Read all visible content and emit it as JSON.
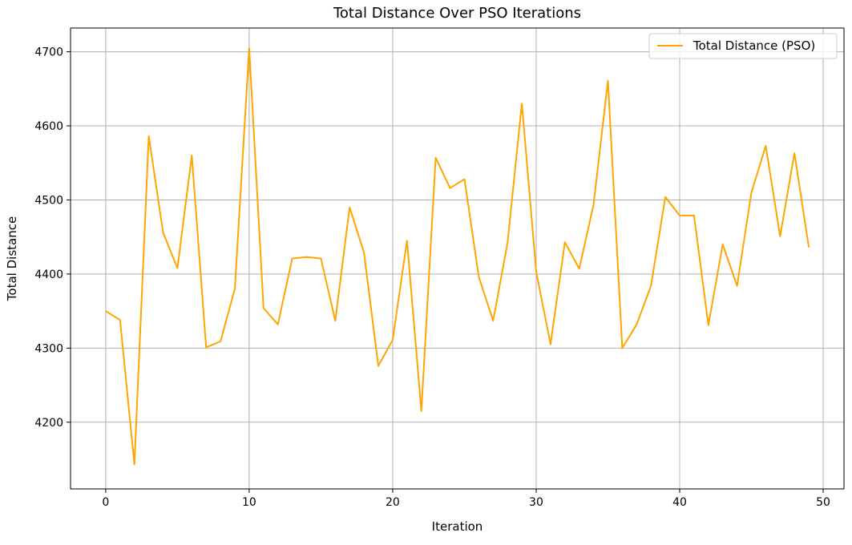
{
  "chart_data": {
    "type": "line",
    "title": "Total Distance Over PSO Iterations",
    "xlabel": "Iteration",
    "ylabel": "Total Distance",
    "xlim": [
      -2.45,
      51.45
    ],
    "ylim": [
      4110,
      4732
    ],
    "xticks": [
      0,
      10,
      20,
      30,
      40,
      50
    ],
    "yticks": [
      4200,
      4300,
      4400,
      4500,
      4600,
      4700
    ],
    "grid": true,
    "legend_position": "top-right",
    "series": [
      {
        "name": "Total Distance (PSO)",
        "color": "#FFA500",
        "x": [
          0,
          1,
          2,
          3,
          4,
          5,
          6,
          7,
          8,
          9,
          10,
          11,
          12,
          13,
          14,
          15,
          16,
          17,
          18,
          19,
          20,
          21,
          22,
          23,
          24,
          25,
          26,
          27,
          28,
          29,
          30,
          31,
          32,
          33,
          34,
          35,
          36,
          37,
          38,
          39,
          40,
          41,
          42,
          43,
          44,
          45,
          46,
          47,
          48,
          49
        ],
        "y": [
          4350,
          4338,
          4143,
          4586,
          4456,
          4408,
          4560,
          4301,
          4309,
          4380,
          4705,
          4354,
          4332,
          4421,
          4423,
          4421,
          4337,
          4490,
          4429,
          4276,
          4311,
          4445,
          4215,
          4557,
          4516,
          4528,
          4396,
          4337,
          4442,
          4630,
          4403,
          4305,
          4443,
          4407,
          4494,
          4661,
          4300,
          4332,
          4384,
          4504,
          4479,
          4479,
          4331,
          4440,
          4384,
          4510,
          4573,
          4451,
          4563,
          4436
        ]
      }
    ]
  }
}
